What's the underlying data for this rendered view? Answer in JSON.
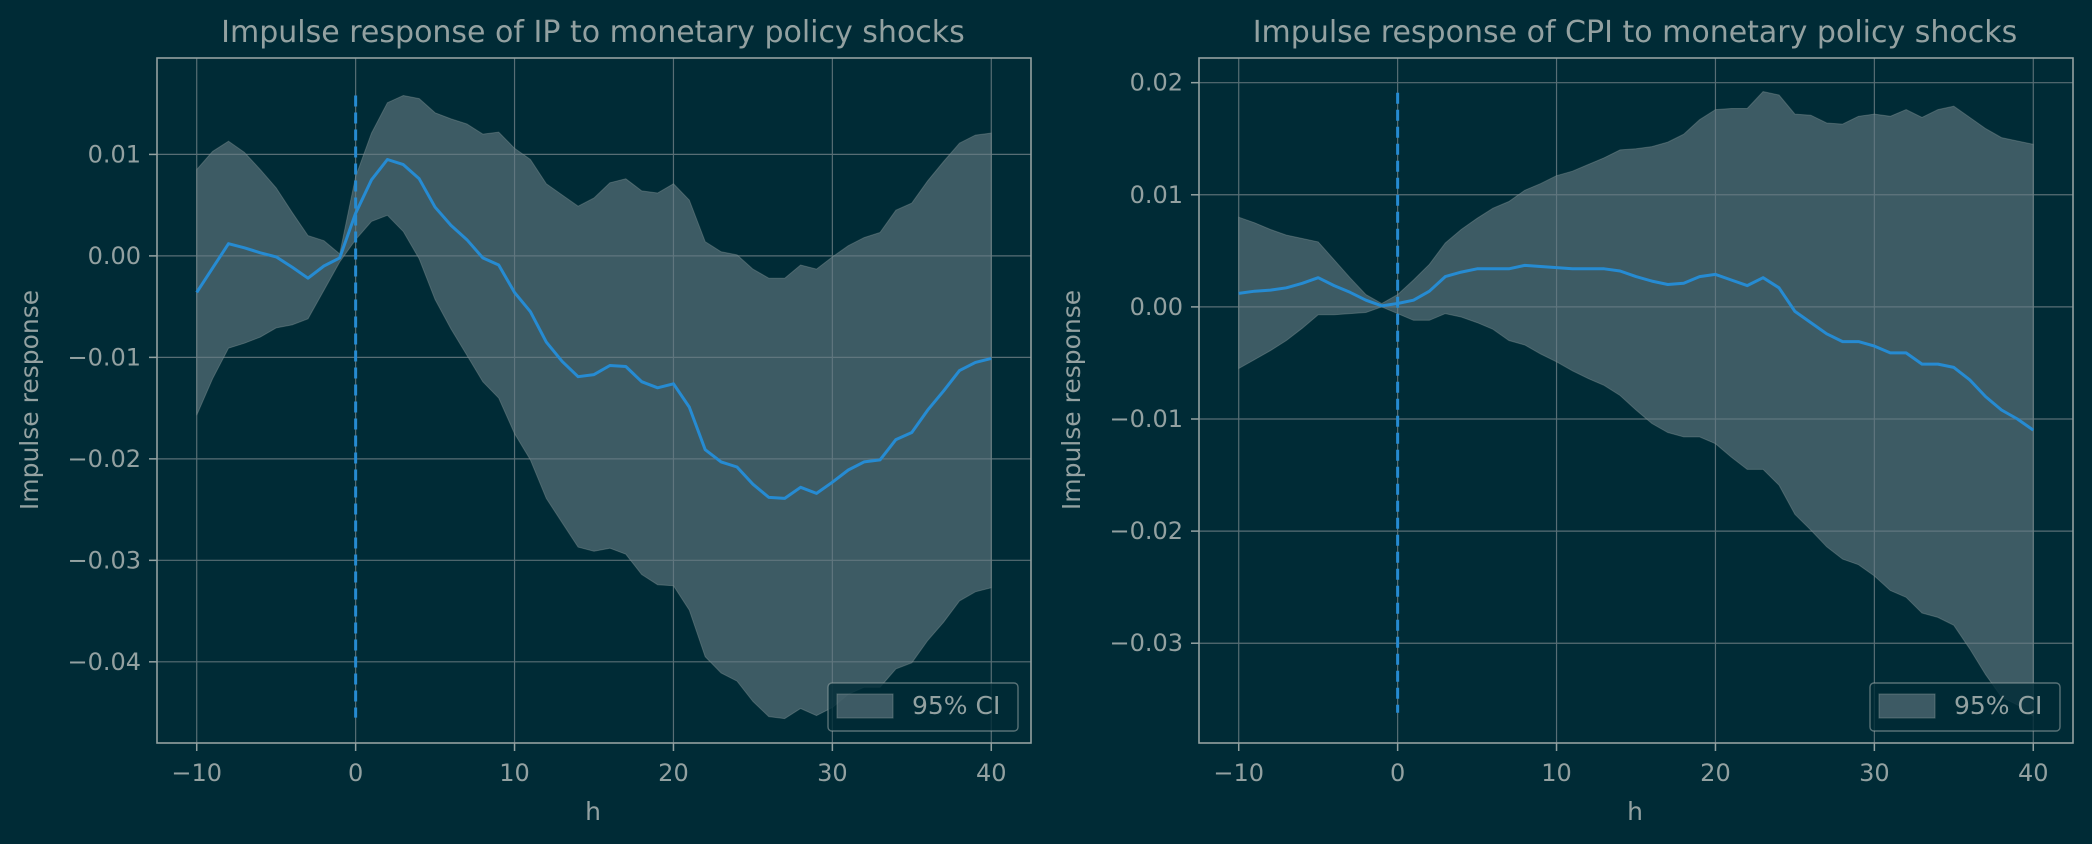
{
  "colors": {
    "background": "#002b36",
    "band": "#657b83",
    "line": "#268bd2",
    "text": "#93a1a1",
    "grid": "#586e75"
  },
  "chart_data": [
    {
      "type": "line",
      "title": "Impulse response of IP to monetary policy shocks",
      "xlabel": "h",
      "ylabel": "Impulse response",
      "xlim": [
        -12.5,
        42.5
      ],
      "ylim": [
        -0.048,
        0.0195
      ],
      "xticks": [
        -10,
        0,
        10,
        20,
        30,
        40
      ],
      "xtick_labels": [
        "−10",
        "0",
        "10",
        "20",
        "30",
        "40"
      ],
      "yticks": [
        0.01,
        0.0,
        -0.01,
        -0.02,
        -0.03,
        -0.04
      ],
      "ytick_labels": [
        "0.01",
        "0.00",
        "−0.01",
        "−0.02",
        "−0.03",
        "−0.04"
      ],
      "grid": true,
      "shock_line_x": 0,
      "shock_line_yrange": [
        -0.0455,
        0.0158
      ],
      "legend": {
        "label": "95% CI",
        "placement": "lower-right"
      },
      "x": [
        -10,
        -9,
        -8,
        -7,
        -6,
        -5,
        -4,
        -3,
        -2,
        -1,
        0,
        1,
        2,
        3,
        4,
        5,
        6,
        7,
        8,
        9,
        10,
        11,
        12,
        13,
        14,
        15,
        16,
        17,
        18,
        19,
        20,
        21,
        22,
        23,
        24,
        25,
        26,
        27,
        28,
        29,
        30,
        31,
        32,
        33,
        34,
        35,
        36,
        37,
        38,
        39,
        40
      ],
      "series": [
        {
          "role": "irf",
          "values": [
            -0.0036,
            -0.0012,
            0.0012,
            0.0008,
            0.0003,
            -0.0001,
            -0.0011,
            -0.0022,
            -0.001,
            -0.0002,
            0.0042,
            0.0075,
            0.0095,
            0.009,
            0.0076,
            0.0048,
            0.003,
            0.0016,
            -0.0002,
            -0.0009,
            -0.0036,
            -0.0055,
            -0.0085,
            -0.0104,
            -0.0119,
            -0.0117,
            -0.0108,
            -0.0109,
            -0.0124,
            -0.013,
            -0.0126,
            -0.0149,
            -0.0191,
            -0.0203,
            -0.0208,
            -0.0225,
            -0.0238,
            -0.0239,
            -0.0228,
            -0.0234,
            -0.0223,
            -0.0211,
            -0.0203,
            -0.0201,
            -0.0181,
            -0.0174,
            -0.0152,
            -0.0133,
            -0.0113,
            -0.0105,
            -0.0101
          ]
        },
        {
          "role": "ci_upper",
          "values": [
            0.0085,
            0.0103,
            0.0113,
            0.0102,
            0.0085,
            0.0067,
            0.0043,
            0.002,
            0.0015,
            0.0002,
            0.0078,
            0.0121,
            0.0151,
            0.0158,
            0.0155,
            0.0141,
            0.0135,
            0.013,
            0.012,
            0.0122,
            0.0106,
            0.0095,
            0.0071,
            0.006,
            0.0049,
            0.0057,
            0.0072,
            0.0076,
            0.0064,
            0.0062,
            0.0071,
            0.0055,
            0.0014,
            0.0004,
            0.0001,
            -0.0013,
            -0.0022,
            -0.0022,
            -0.0009,
            -0.0013,
            -0.0001,
            0.001,
            0.0018,
            0.0023,
            0.0045,
            0.0052,
            0.0074,
            0.0093,
            0.0111,
            0.0119,
            0.0121
          ]
        },
        {
          "role": "ci_lower",
          "values": [
            -0.0157,
            -0.0121,
            -0.0091,
            -0.0086,
            -0.008,
            -0.0071,
            -0.0068,
            -0.0062,
            -0.0034,
            -0.0006,
            0.0016,
            0.0034,
            0.004,
            0.0024,
            -0.0003,
            -0.0043,
            -0.0072,
            -0.0098,
            -0.0124,
            -0.014,
            -0.0175,
            -0.0201,
            -0.0239,
            -0.0263,
            -0.0287,
            -0.0291,
            -0.0288,
            -0.0294,
            -0.0314,
            -0.0324,
            -0.0325,
            -0.0349,
            -0.0395,
            -0.0411,
            -0.0419,
            -0.0439,
            -0.0454,
            -0.0456,
            -0.0446,
            -0.0453,
            -0.0445,
            -0.0432,
            -0.0425,
            -0.0425,
            -0.0407,
            -0.0401,
            -0.0379,
            -0.0361,
            -0.034,
            -0.0331,
            -0.0327
          ]
        }
      ]
    },
    {
      "type": "line",
      "title": "Impulse response of CPI to monetary policy shocks",
      "xlabel": "h",
      "ylabel": "Impulse response",
      "xlim": [
        -12.5,
        42.5
      ],
      "ylim": [
        -0.0389,
        0.0222
      ],
      "xticks": [
        -10,
        0,
        10,
        20,
        30,
        40
      ],
      "xtick_labels": [
        "−10",
        "0",
        "10",
        "20",
        "30",
        "40"
      ],
      "yticks": [
        0.02,
        0.01,
        0.0,
        -0.01,
        -0.02,
        -0.03
      ],
      "ytick_labels": [
        "0.02",
        "0.01",
        "0.00",
        "−0.01",
        "−0.02",
        "−0.03"
      ],
      "grid": true,
      "shock_line_x": 0,
      "shock_line_yrange": [
        -0.0362,
        0.0191
      ],
      "legend": {
        "label": "95% CI",
        "placement": "lower-right"
      },
      "x": [
        -10,
        -9,
        -8,
        -7,
        -6,
        -5,
        -4,
        -3,
        -2,
        -1,
        0,
        1,
        2,
        3,
        4,
        5,
        6,
        7,
        8,
        9,
        10,
        11,
        12,
        13,
        14,
        15,
        16,
        17,
        18,
        19,
        20,
        21,
        22,
        23,
        24,
        25,
        26,
        27,
        28,
        29,
        30,
        31,
        32,
        33,
        34,
        35,
        36,
        37,
        38,
        39,
        40
      ],
      "series": [
        {
          "role": "irf",
          "values": [
            0.0012,
            0.0014,
            0.0015,
            0.0017,
            0.0021,
            0.0026,
            0.0019,
            0.0013,
            0.0006,
            0.0001,
            0.0003,
            0.0006,
            0.0014,
            0.0027,
            0.0031,
            0.0034,
            0.0034,
            0.0034,
            0.0037,
            0.0036,
            0.0035,
            0.0034,
            0.0034,
            0.0034,
            0.0032,
            0.0027,
            0.0023,
            0.002,
            0.0021,
            0.0027,
            0.0029,
            0.0024,
            0.0019,
            0.0026,
            0.0017,
            -0.0004,
            -0.0014,
            -0.0024,
            -0.0031,
            -0.0031,
            -0.0035,
            -0.0041,
            -0.0041,
            -0.0051,
            -0.0051,
            -0.0054,
            -0.0065,
            -0.008,
            -0.0092,
            -0.01,
            -0.011
          ]
        },
        {
          "role": "ci_upper",
          "values": [
            0.008,
            0.0075,
            0.0069,
            0.0064,
            0.0061,
            0.0058,
            0.0042,
            0.0026,
            0.0011,
            0.0003,
            0.0011,
            0.0024,
            0.0038,
            0.0057,
            0.0069,
            0.0079,
            0.0088,
            0.0094,
            0.0104,
            0.011,
            0.0117,
            0.0121,
            0.0127,
            0.0133,
            0.014,
            0.0141,
            0.0143,
            0.0147,
            0.0154,
            0.0167,
            0.0176,
            0.0177,
            0.0177,
            0.0192,
            0.0189,
            0.0172,
            0.0171,
            0.0164,
            0.0163,
            0.017,
            0.0172,
            0.017,
            0.0176,
            0.0169,
            0.0176,
            0.0179,
            0.0169,
            0.0159,
            0.0151,
            0.0148,
            0.0145
          ]
        },
        {
          "role": "ci_lower",
          "values": [
            -0.0055,
            -0.0047,
            -0.0039,
            -0.003,
            -0.0019,
            -0.0007,
            -0.0007,
            -0.0006,
            -0.0005,
            0.0,
            -0.0006,
            -0.0012,
            -0.0012,
            -0.0006,
            -0.0009,
            -0.0014,
            -0.002,
            -0.003,
            -0.0034,
            -0.0042,
            -0.0049,
            -0.0057,
            -0.0064,
            -0.007,
            -0.0079,
            -0.0092,
            -0.0104,
            -0.0112,
            -0.0116,
            -0.0116,
            -0.0122,
            -0.0134,
            -0.0145,
            -0.0145,
            -0.0159,
            -0.0185,
            -0.0199,
            -0.0214,
            -0.0225,
            -0.023,
            -0.024,
            -0.0253,
            -0.0259,
            -0.0273,
            -0.0277,
            -0.0284,
            -0.0305,
            -0.0328,
            -0.0348,
            -0.0355,
            -0.0365
          ]
        }
      ]
    }
  ]
}
